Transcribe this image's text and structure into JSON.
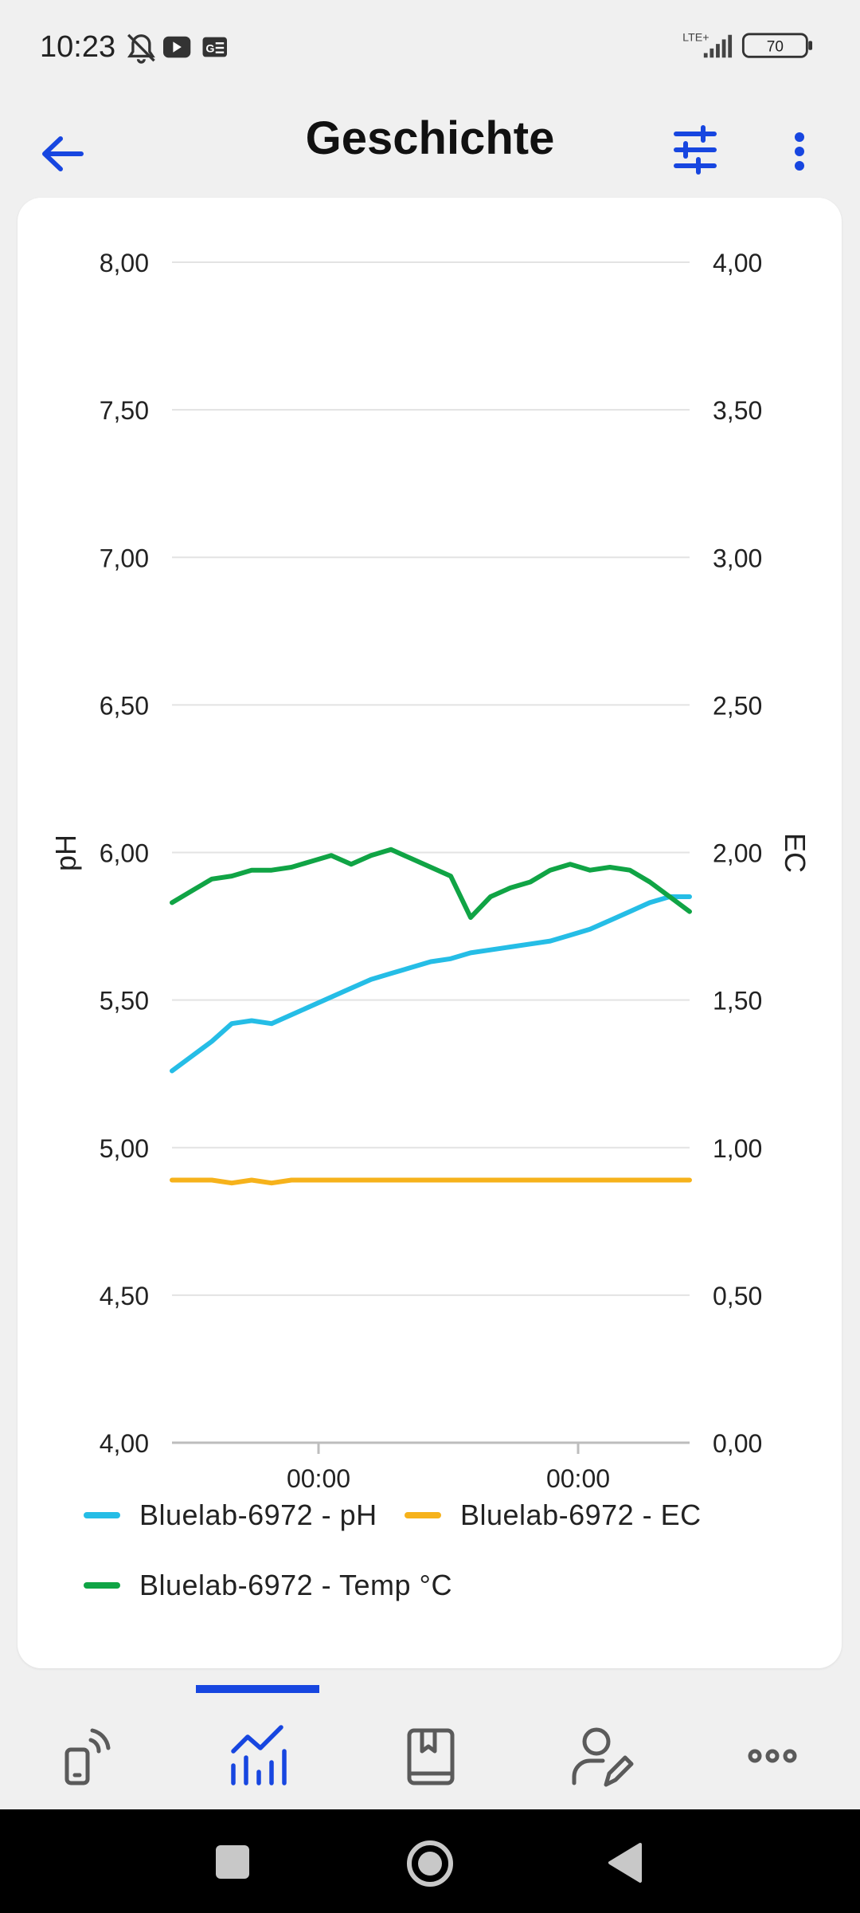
{
  "status_bar": {
    "time": "10:23",
    "network": "LTE+",
    "battery": "70"
  },
  "app_bar": {
    "title": "Geschichte"
  },
  "colors": {
    "accent": "#1746e0",
    "ph": "#25bde6",
    "ec": "#f6b21b",
    "temp": "#10a445"
  },
  "icons": {
    "back": "arrow-left-icon",
    "filter": "sliders-icon",
    "more": "more-vertical-icon",
    "nav": [
      "device-signal-icon",
      "chart-icon",
      "book-icon",
      "user-edit-icon",
      "more-horizontal-icon"
    ]
  },
  "chart_data": {
    "type": "line",
    "x_tick_labels": [
      "00:00",
      "00:00"
    ],
    "left_axis": {
      "label": "pH",
      "range": [
        4.0,
        8.0
      ],
      "ticks": [
        "4,00",
        "4,50",
        "5,00",
        "5,50",
        "6,00",
        "6,50",
        "7,00",
        "7,50",
        "8,00"
      ]
    },
    "right_axis": {
      "label": "EC",
      "range": [
        0.0,
        4.0
      ],
      "ticks": [
        "0,00",
        "0,50",
        "1,00",
        "1,50",
        "2,00",
        "2,50",
        "3,00",
        "3,50",
        "4,00"
      ]
    },
    "grid": true,
    "legend_position": "bottom",
    "series": [
      {
        "name": "Bluelab-6972 - pH",
        "axis": "left",
        "color": "#25bde6",
        "values": [
          5.26,
          5.31,
          5.36,
          5.42,
          5.43,
          5.42,
          5.45,
          5.48,
          5.51,
          5.54,
          5.57,
          5.59,
          5.61,
          5.63,
          5.64,
          5.66,
          5.67,
          5.68,
          5.69,
          5.7,
          5.72,
          5.74,
          5.77,
          5.8,
          5.83,
          5.85,
          5.85
        ]
      },
      {
        "name": "Bluelab-6972 - EC",
        "axis": "right",
        "color": "#f6b21b",
        "values": [
          0.89,
          0.89,
          0.89,
          0.88,
          0.89,
          0.88,
          0.89,
          0.89,
          0.89,
          0.89,
          0.89,
          0.89,
          0.89,
          0.89,
          0.89,
          0.89,
          0.89,
          0.89,
          0.89,
          0.89,
          0.89,
          0.89,
          0.89,
          0.89,
          0.89,
          0.89,
          0.89
        ]
      },
      {
        "name": "Bluelab-6972 - Temp °C",
        "axis": "left",
        "color": "#10a445",
        "values": [
          5.83,
          5.87,
          5.91,
          5.92,
          5.94,
          5.94,
          5.95,
          5.97,
          5.99,
          5.96,
          5.99,
          6.01,
          5.98,
          5.95,
          5.92,
          5.78,
          5.85,
          5.88,
          5.9,
          5.94,
          5.96,
          5.94,
          5.95,
          5.94,
          5.9,
          5.85,
          5.8
        ]
      }
    ]
  }
}
